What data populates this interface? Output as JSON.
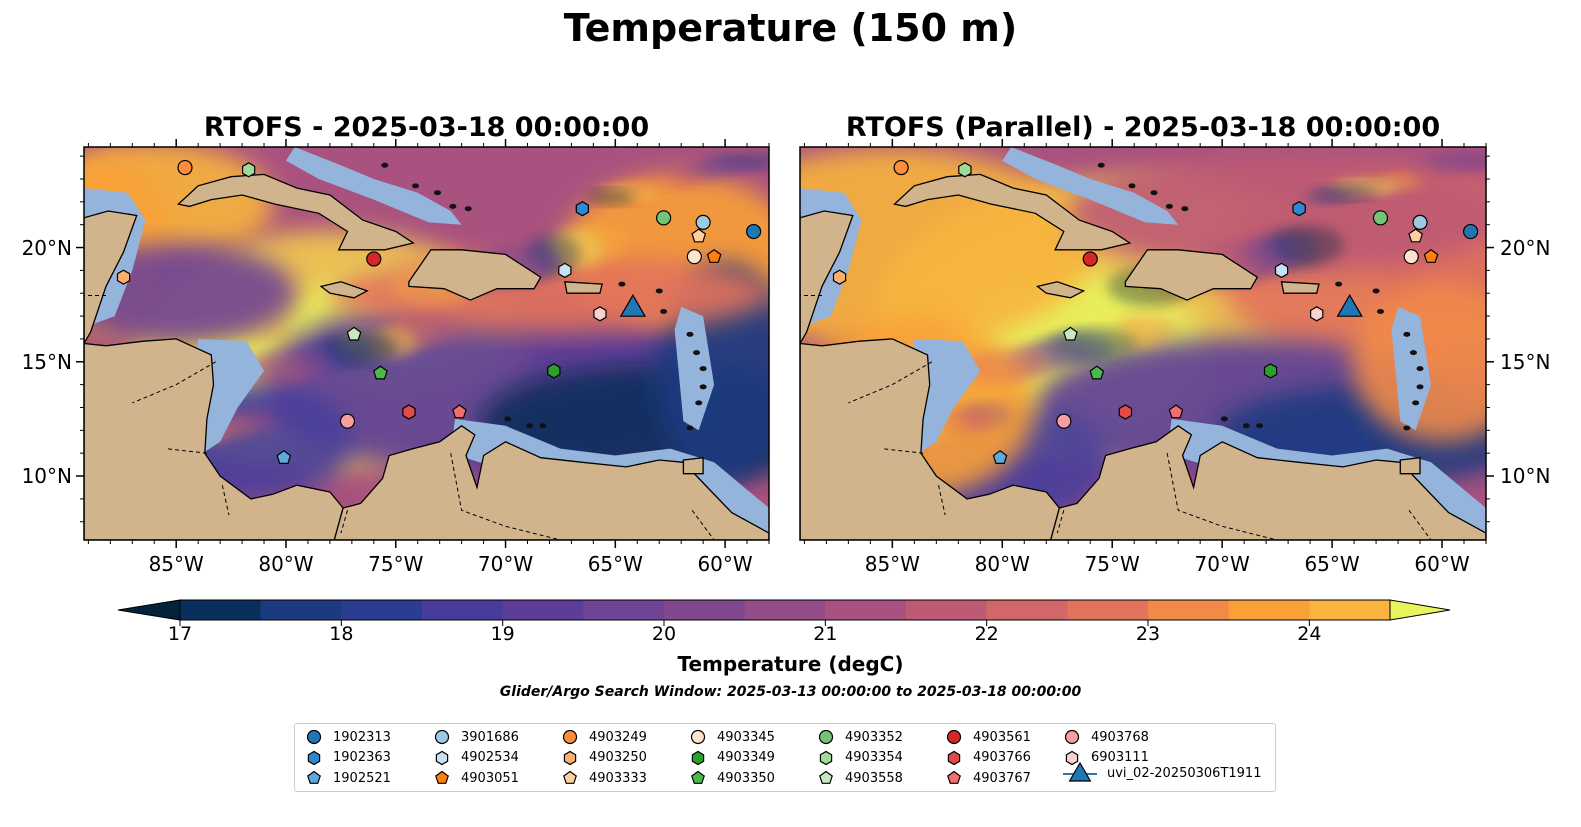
{
  "figure": {
    "title": "Temperature (150 m)",
    "panels": [
      {
        "id": "left",
        "title": "RTOFS - 2025-03-18 00:00:00"
      },
      {
        "id": "right",
        "title": "RTOFS (Parallel) - 2025-03-18 00:00:00"
      }
    ],
    "lon_ticks": [
      "85°W",
      "80°W",
      "75°W",
      "70°W",
      "65°W",
      "60°W"
    ],
    "lat_ticks": [
      "20°N",
      "15°N",
      "10°N"
    ],
    "extent": {
      "lon": [
        -89,
        -58
      ],
      "lat": [
        7,
        24.5
      ]
    }
  },
  "colorbar": {
    "label": "Temperature (degC)",
    "ticks": [
      "17",
      "18",
      "19",
      "20",
      "21",
      "22",
      "23",
      "24"
    ],
    "range": [
      17,
      24.5
    ],
    "step": 0.5,
    "colors": [
      "#04233a",
      "#0a2f5c",
      "#1b3a80",
      "#2b3d92",
      "#473c9c",
      "#5c3e99",
      "#6f4494",
      "#82488f",
      "#944d88",
      "#a9527f",
      "#bd5a74",
      "#d16768",
      "#e3735c",
      "#f18a49",
      "#f9a037",
      "#f8b43e",
      "#f2cb50",
      "#e8f35d"
    ]
  },
  "search_window": "Glider/Argo Search Window: 2025-03-13 00:00:00 to 2025-03-18 00:00:00",
  "legend": [
    {
      "label": "1902313",
      "marker": "circle",
      "color": "#1f77b4"
    },
    {
      "label": "1902363",
      "marker": "hexagon",
      "color": "#2c88d0"
    },
    {
      "label": "1902521",
      "marker": "pentagon",
      "color": "#5fa8dc"
    },
    {
      "label": "3901686",
      "marker": "circle",
      "color": "#9ecae1"
    },
    {
      "label": "4902534",
      "marker": "hexagon",
      "color": "#c6e2f3"
    },
    {
      "label": "4903051",
      "marker": "pentagon",
      "color": "#ff7f0e"
    },
    {
      "label": "4903249",
      "marker": "circle",
      "color": "#fd8d3c"
    },
    {
      "label": "4903250",
      "marker": "hexagon",
      "color": "#fdae6b"
    },
    {
      "label": "4903333",
      "marker": "pentagon",
      "color": "#fdd0a2"
    },
    {
      "label": "4903345",
      "marker": "circle",
      "color": "#fde4cc"
    },
    {
      "label": "4903349",
      "marker": "hexagon",
      "color": "#2ca02c"
    },
    {
      "label": "4903350",
      "marker": "pentagon",
      "color": "#4cb84c"
    },
    {
      "label": "4903352",
      "marker": "circle",
      "color": "#74c476"
    },
    {
      "label": "4903354",
      "marker": "hexagon",
      "color": "#a1d99b"
    },
    {
      "label": "4903558",
      "marker": "pentagon",
      "color": "#c7e9c0"
    },
    {
      "label": "4903561",
      "marker": "circle",
      "color": "#d62728"
    },
    {
      "label": "4903766",
      "marker": "hexagon",
      "color": "#e34a4a"
    },
    {
      "label": "4903767",
      "marker": "pentagon",
      "color": "#f07070"
    },
    {
      "label": "4903768",
      "marker": "circle",
      "color": "#f4a0a0"
    },
    {
      "label": "6903111",
      "marker": "hexagon",
      "color": "#fad0d0"
    },
    {
      "label": "uvi_02-20250306T1911",
      "marker": "triangle",
      "color": "#1f77b4"
    }
  ],
  "floats": [
    {
      "id": "1902313",
      "lon": -58.7,
      "lat": 20.7
    },
    {
      "id": "1902363",
      "lon": -66.5,
      "lat": 21.7
    },
    {
      "id": "1902521",
      "lon": -80.1,
      "lat": 10.8
    },
    {
      "id": "3901686",
      "lon": -61.0,
      "lat": 21.1
    },
    {
      "id": "4902534",
      "lon": -67.3,
      "lat": 19.0
    },
    {
      "id": "4903051",
      "lon": -60.5,
      "lat": 19.6
    },
    {
      "id": "4903249",
      "lon": -84.6,
      "lat": 23.5
    },
    {
      "id": "4903250",
      "lon": -87.4,
      "lat": 18.7
    },
    {
      "id": "4903333",
      "lon": -61.2,
      "lat": 20.5
    },
    {
      "id": "4903345",
      "lon": -61.4,
      "lat": 19.6
    },
    {
      "id": "4903349",
      "lon": -67.8,
      "lat": 14.6
    },
    {
      "id": "4903350",
      "lon": -75.7,
      "lat": 14.5
    },
    {
      "id": "4903352",
      "lon": -62.8,
      "lat": 21.3
    },
    {
      "id": "4903354",
      "lon": -81.7,
      "lat": 23.4
    },
    {
      "id": "4903558",
      "lon": -76.9,
      "lat": 16.2
    },
    {
      "id": "4903561",
      "lon": -76.0,
      "lat": 19.5
    },
    {
      "id": "4903766",
      "lon": -74.4,
      "lat": 12.8
    },
    {
      "id": "4903767",
      "lon": -72.1,
      "lat": 12.8
    },
    {
      "id": "4903768",
      "lon": -77.2,
      "lat": 12.4
    },
    {
      "id": "6903111",
      "lon": -65.7,
      "lat": 17.1
    }
  ],
  "glider": {
    "id": "uvi_02-20250306T1911",
    "lon": -64.2,
    "lat": 17.3
  }
}
